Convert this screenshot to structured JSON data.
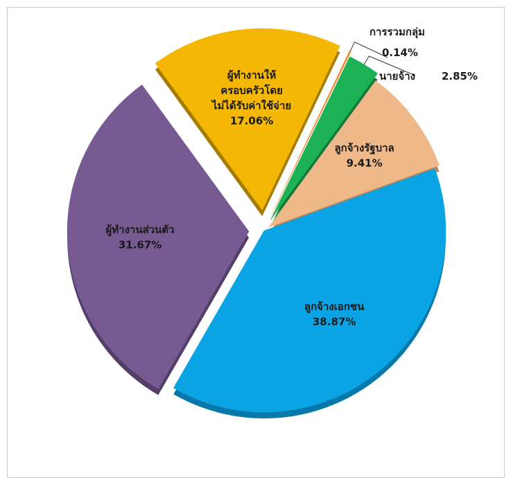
{
  "chart_data": {
    "type": "pie",
    "title": "",
    "slices": [
      {
        "label": "ลูกจ้างเอกชน",
        "value": 38.87,
        "display_value": "38.87%",
        "color": "#0aa3e3",
        "side_color": "#0679aa"
      },
      {
        "label": "ผู้ทำงานส่วนตัว",
        "value": 31.67,
        "display_value": "31.67%",
        "color": "#775a92",
        "side_color": "#533e68"
      },
      {
        "label": "ผู้ทำงานให้ครอบครัวโดยไม่ได้รับค่าใช้จ่าย",
        "label_lines": [
          "ผู้ทำงานให้",
          "ครอบครัวโดย",
          "ไม่ได้รับค่าใช้จ่าย"
        ],
        "value": 17.06,
        "display_value": "17.06%",
        "color": "#f3b704",
        "side_color": "#a67c00"
      },
      {
        "label": "การรวมกลุ่ม",
        "value": 0.14,
        "display_value": "0.14%",
        "color": "#f0882c",
        "side_color": "#b05e14"
      },
      {
        "label": "นายจ้าง",
        "value": 2.85,
        "display_value": "2.85%",
        "color": "#1db155",
        "side_color": "#13783a"
      },
      {
        "label": "ลูกจ้างรัฐบาล",
        "value": 9.41,
        "display_value": "9.41%",
        "color": "#eeb889",
        "side_color": "#b88659"
      }
    ],
    "legend": "none",
    "data_labels": "category-and-percent"
  }
}
